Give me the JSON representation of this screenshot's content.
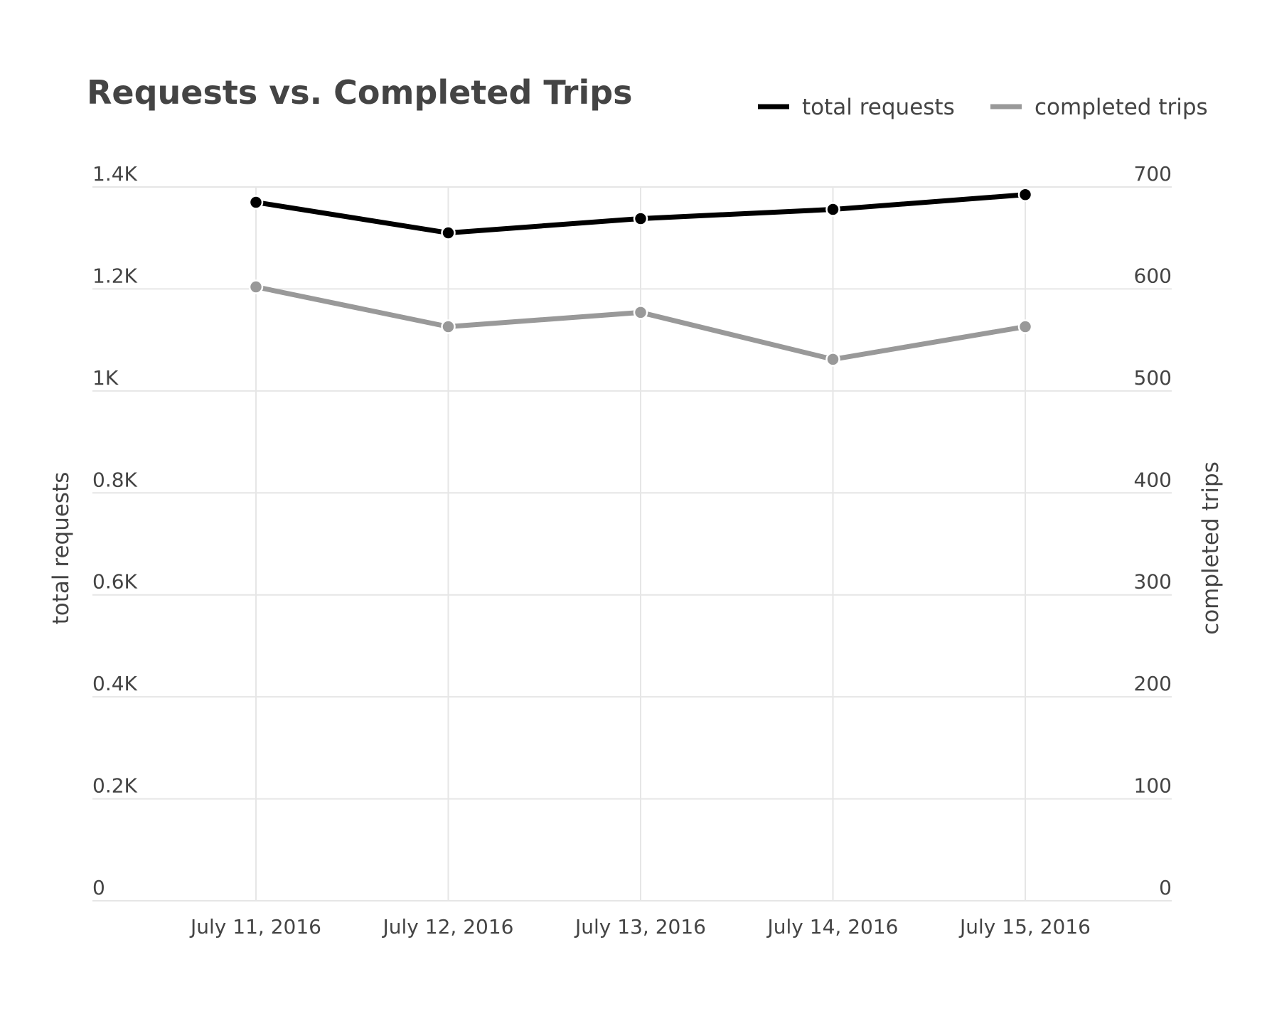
{
  "chart_data": {
    "type": "line",
    "title": "Requests vs. Completed Trips",
    "categories": [
      "July 11, 2016",
      "July 12, 2016",
      "July 13, 2016",
      "July 14, 2016",
      "July 15, 2016"
    ],
    "series": [
      {
        "name": "total requests",
        "axis": "left",
        "color": "#000000",
        "values": [
          1370,
          1310,
          1338,
          1356,
          1385
        ]
      },
      {
        "name": "completed trips",
        "axis": "right",
        "color": "#999999",
        "values": [
          602,
          563,
          577,
          531,
          563
        ]
      }
    ],
    "y_left": {
      "label": "total requests",
      "range": [
        0,
        1400
      ],
      "ticks": [
        0,
        200,
        400,
        600,
        800,
        1000,
        1200,
        1400
      ],
      "tick_labels": [
        "0",
        "0.2K",
        "0.4K",
        "0.6K",
        "0.8K",
        "1K",
        "1.2K",
        "1.4K"
      ]
    },
    "y_right": {
      "label": "completed trips",
      "range": [
        0,
        700
      ],
      "ticks": [
        0,
        100,
        200,
        300,
        400,
        500,
        600,
        700
      ],
      "tick_labels": [
        "0",
        "100",
        "200",
        "300",
        "400",
        "500",
        "600",
        "700"
      ]
    },
    "grid": true,
    "legend_position": "top-right"
  }
}
